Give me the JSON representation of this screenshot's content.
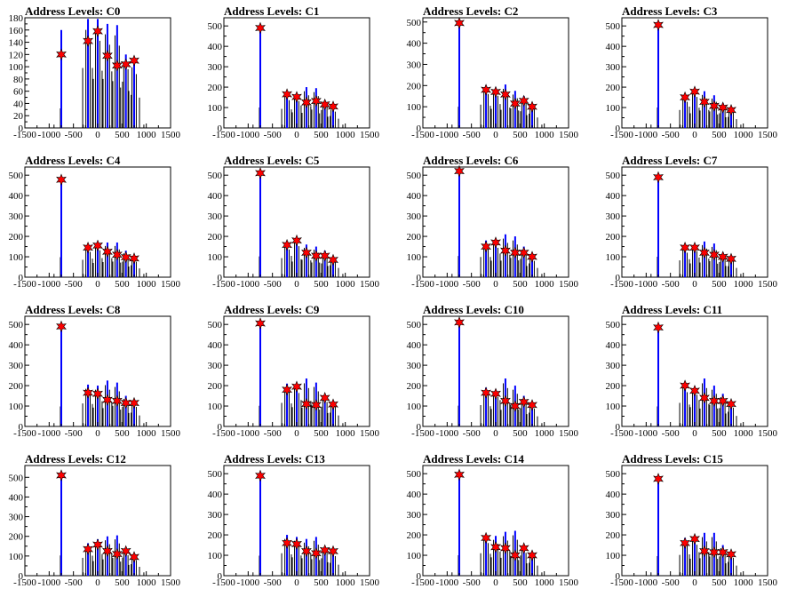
{
  "chart_data": [
    {
      "type": "bar",
      "title": "Address Levels: C0",
      "xlim": [
        -1500,
        1500
      ],
      "ylim": [
        0,
        180
      ],
      "xticks": [
        -1500,
        -1000,
        -500,
        0,
        500,
        1000,
        1500
      ],
      "yticks": [
        0,
        20,
        40,
        60,
        80,
        100,
        120,
        140,
        160,
        180
      ],
      "peaks": [
        {
          "x": -750,
          "y": 160,
          "star": 120
        },
        {
          "x": -200,
          "y": 178,
          "star": 142
        },
        {
          "x": 0,
          "y": 178,
          "star": 158
        },
        {
          "x": 200,
          "y": 170,
          "star": 118
        },
        {
          "x": 400,
          "y": 168,
          "star": 102
        },
        {
          "x": 580,
          "y": 120,
          "star": 104
        },
        {
          "x": 750,
          "y": 110,
          "star": 110
        }
      ]
    },
    {
      "type": "bar",
      "title": "Address Levels: C1",
      "xlim": [
        -1500,
        1500
      ],
      "ylim": [
        0,
        540
      ],
      "xticks": [
        -1500,
        -1000,
        -500,
        0,
        500,
        1000,
        1500
      ],
      "yticks": [
        0,
        100,
        200,
        300,
        400,
        500
      ],
      "peaks": [
        {
          "x": -750,
          "y": 500,
          "star": 490
        },
        {
          "x": -200,
          "y": 170,
          "star": 165
        },
        {
          "x": 0,
          "y": 165,
          "star": 152
        },
        {
          "x": 200,
          "y": 200,
          "star": 125
        },
        {
          "x": 400,
          "y": 195,
          "star": 132
        },
        {
          "x": 580,
          "y": 130,
          "star": 115
        },
        {
          "x": 750,
          "y": 100,
          "star": 105
        }
      ]
    },
    {
      "type": "bar",
      "title": "Address Levels: C2",
      "xlim": [
        -1500,
        1500
      ],
      "ylim": [
        0,
        520
      ],
      "xticks": [
        -1500,
        -1000,
        -500,
        0,
        500,
        1000,
        1500
      ],
      "yticks": [
        0,
        100,
        200,
        300,
        400,
        500
      ],
      "peaks": [
        {
          "x": -750,
          "y": 500,
          "star": 495
        },
        {
          "x": -200,
          "y": 200,
          "star": 180
        },
        {
          "x": 0,
          "y": 190,
          "star": 170
        },
        {
          "x": 200,
          "y": 205,
          "star": 158
        },
        {
          "x": 400,
          "y": 175,
          "star": 115
        },
        {
          "x": 580,
          "y": 150,
          "star": 128
        },
        {
          "x": 750,
          "y": 110,
          "star": 100
        }
      ]
    },
    {
      "type": "bar",
      "title": "Address Levels: C3",
      "xlim": [
        -1500,
        1500
      ],
      "ylim": [
        0,
        540
      ],
      "xticks": [
        -1500,
        -1000,
        -500,
        0,
        500,
        1000,
        1500
      ],
      "yticks": [
        0,
        100,
        200,
        300,
        400,
        500
      ],
      "peaks": [
        {
          "x": -750,
          "y": 500,
          "star": 505
        },
        {
          "x": -200,
          "y": 160,
          "star": 150
        },
        {
          "x": 0,
          "y": 190,
          "star": 178
        },
        {
          "x": 200,
          "y": 180,
          "star": 128
        },
        {
          "x": 400,
          "y": 160,
          "star": 108
        },
        {
          "x": 580,
          "y": 120,
          "star": 100
        },
        {
          "x": 750,
          "y": 95,
          "star": 88
        }
      ]
    },
    {
      "type": "bar",
      "title": "Address Levels: C4",
      "xlim": [
        -1500,
        1500
      ],
      "ylim": [
        0,
        540
      ],
      "xticks": [
        -1500,
        -1000,
        -500,
        0,
        500,
        1000,
        1500
      ],
      "yticks": [
        0,
        100,
        200,
        300,
        400,
        500
      ],
      "peaks": [
        {
          "x": -750,
          "y": 490,
          "star": 478
        },
        {
          "x": -200,
          "y": 155,
          "star": 145
        },
        {
          "x": 0,
          "y": 165,
          "star": 155
        },
        {
          "x": 200,
          "y": 170,
          "star": 125
        },
        {
          "x": 400,
          "y": 170,
          "star": 110
        },
        {
          "x": 580,
          "y": 130,
          "star": 98
        },
        {
          "x": 750,
          "y": 95,
          "star": 92
        }
      ]
    },
    {
      "type": "bar",
      "title": "Address Levels: C5",
      "xlim": [
        -1500,
        1500
      ],
      "ylim": [
        0,
        540
      ],
      "xticks": [
        -1500,
        -1000,
        -500,
        0,
        500,
        1000,
        1500
      ],
      "yticks": [
        0,
        100,
        200,
        300,
        400,
        500
      ],
      "peaks": [
        {
          "x": -750,
          "y": 510,
          "star": 510
        },
        {
          "x": -200,
          "y": 170,
          "star": 158
        },
        {
          "x": 0,
          "y": 190,
          "star": 180
        },
        {
          "x": 200,
          "y": 160,
          "star": 120
        },
        {
          "x": 400,
          "y": 150,
          "star": 105
        },
        {
          "x": 580,
          "y": 130,
          "star": 105
        },
        {
          "x": 750,
          "y": 100,
          "star": 85
        }
      ]
    },
    {
      "type": "bar",
      "title": "Address Levels: C6",
      "xlim": [
        -1500,
        1500
      ],
      "ylim": [
        0,
        540
      ],
      "xticks": [
        -1500,
        -1000,
        -500,
        0,
        500,
        1000,
        1500
      ],
      "yticks": [
        0,
        100,
        200,
        300,
        400,
        500
      ],
      "peaks": [
        {
          "x": -750,
          "y": 520,
          "star": 520
        },
        {
          "x": -200,
          "y": 180,
          "star": 150
        },
        {
          "x": 0,
          "y": 180,
          "star": 170
        },
        {
          "x": 200,
          "y": 210,
          "star": 130
        },
        {
          "x": 400,
          "y": 200,
          "star": 120
        },
        {
          "x": 580,
          "y": 150,
          "star": 120
        },
        {
          "x": 750,
          "y": 100,
          "star": 100
        }
      ]
    },
    {
      "type": "bar",
      "title": "Address Levels: C7",
      "xlim": [
        -1500,
        1500
      ],
      "ylim": [
        0,
        540
      ],
      "xticks": [
        -1500,
        -1000,
        -500,
        0,
        500,
        1000,
        1500
      ],
      "yticks": [
        0,
        100,
        200,
        300,
        400,
        500
      ],
      "peaks": [
        {
          "x": -750,
          "y": 500,
          "star": 490
        },
        {
          "x": -200,
          "y": 150,
          "star": 145
        },
        {
          "x": 0,
          "y": 160,
          "star": 145
        },
        {
          "x": 200,
          "y": 175,
          "star": 120
        },
        {
          "x": 400,
          "y": 165,
          "star": 110
        },
        {
          "x": 580,
          "y": 120,
          "star": 100
        },
        {
          "x": 750,
          "y": 100,
          "star": 90
        }
      ]
    },
    {
      "type": "bar",
      "title": "Address Levels: C8",
      "xlim": [
        -1500,
        1500
      ],
      "ylim": [
        0,
        540
      ],
      "xticks": [
        -1500,
        -1000,
        -500,
        0,
        500,
        1000,
        1500
      ],
      "yticks": [
        0,
        100,
        200,
        300,
        400,
        500
      ],
      "peaks": [
        {
          "x": -750,
          "y": 490,
          "star": 490
        },
        {
          "x": -200,
          "y": 205,
          "star": 165
        },
        {
          "x": 0,
          "y": 200,
          "star": 160
        },
        {
          "x": 200,
          "y": 225,
          "star": 130
        },
        {
          "x": 400,
          "y": 215,
          "star": 125
        },
        {
          "x": 580,
          "y": 150,
          "star": 115
        },
        {
          "x": 750,
          "y": 120,
          "star": 115
        }
      ]
    },
    {
      "type": "bar",
      "title": "Address Levels: C9",
      "xlim": [
        -1500,
        1500
      ],
      "ylim": [
        0,
        540
      ],
      "xticks": [
        -1500,
        -1000,
        -500,
        0,
        500,
        1000,
        1500
      ],
      "yticks": [
        0,
        100,
        200,
        300,
        400,
        500
      ],
      "peaks": [
        {
          "x": -750,
          "y": 505,
          "star": 505
        },
        {
          "x": -200,
          "y": 210,
          "star": 180
        },
        {
          "x": 0,
          "y": 205,
          "star": 195
        },
        {
          "x": 200,
          "y": 235,
          "star": 110
        },
        {
          "x": 400,
          "y": 215,
          "star": 105
        },
        {
          "x": 580,
          "y": 150,
          "star": 140
        },
        {
          "x": 750,
          "y": 120,
          "star": 108
        }
      ]
    },
    {
      "type": "bar",
      "title": "Address Levels: C10",
      "xlim": [
        -1500,
        1500
      ],
      "ylim": [
        0,
        540
      ],
      "xticks": [
        -1500,
        -1000,
        -500,
        0,
        500,
        1000,
        1500
      ],
      "yticks": [
        0,
        100,
        200,
        300,
        400,
        500
      ],
      "peaks": [
        {
          "x": -750,
          "y": 510,
          "star": 510
        },
        {
          "x": -200,
          "y": 190,
          "star": 165
        },
        {
          "x": 0,
          "y": 180,
          "star": 160
        },
        {
          "x": 200,
          "y": 235,
          "star": 125
        },
        {
          "x": 400,
          "y": 200,
          "star": 100
        },
        {
          "x": 580,
          "y": 150,
          "star": 120
        },
        {
          "x": 750,
          "y": 110,
          "star": 105
        }
      ]
    },
    {
      "type": "bar",
      "title": "Address Levels: C11",
      "xlim": [
        -1500,
        1500
      ],
      "ylim": [
        0,
        540
      ],
      "xticks": [
        -1500,
        -1000,
        -500,
        0,
        500,
        1000,
        1500
      ],
      "yticks": [
        0,
        100,
        200,
        300,
        400,
        500
      ],
      "peaks": [
        {
          "x": -750,
          "y": 490,
          "star": 485
        },
        {
          "x": -200,
          "y": 210,
          "star": 200
        },
        {
          "x": 0,
          "y": 195,
          "star": 175
        },
        {
          "x": 200,
          "y": 235,
          "star": 140
        },
        {
          "x": 400,
          "y": 200,
          "star": 125
        },
        {
          "x": 580,
          "y": 160,
          "star": 125
        },
        {
          "x": 750,
          "y": 115,
          "star": 110
        }
      ]
    },
    {
      "type": "bar",
      "title": "Address Levels: C12",
      "xlim": [
        -1500,
        1500
      ],
      "ylim": [
        0,
        560
      ],
      "xticks": [
        -1500,
        -1000,
        -500,
        0,
        500,
        1000,
        1500
      ],
      "yticks": [
        0,
        100,
        200,
        300,
        400,
        500
      ],
      "peaks": [
        {
          "x": -750,
          "y": 515,
          "star": 510
        },
        {
          "x": -200,
          "y": 165,
          "star": 135
        },
        {
          "x": 0,
          "y": 185,
          "star": 158
        },
        {
          "x": 200,
          "y": 200,
          "star": 125
        },
        {
          "x": 400,
          "y": 205,
          "star": 110
        },
        {
          "x": 580,
          "y": 130,
          "star": 125
        },
        {
          "x": 750,
          "y": 100,
          "star": 95
        }
      ]
    },
    {
      "type": "bar",
      "title": "Address Levels: C13",
      "xlim": [
        -1500,
        1500
      ],
      "ylim": [
        0,
        540
      ],
      "xticks": [
        -1500,
        -1000,
        -500,
        0,
        500,
        1000,
        1500
      ],
      "yticks": [
        0,
        100,
        200,
        300,
        400,
        500
      ],
      "peaks": [
        {
          "x": -750,
          "y": 490,
          "star": 490
        },
        {
          "x": -200,
          "y": 200,
          "star": 160
        },
        {
          "x": 0,
          "y": 190,
          "star": 155
        },
        {
          "x": 200,
          "y": 180,
          "star": 120
        },
        {
          "x": 400,
          "y": 190,
          "star": 110
        },
        {
          "x": 580,
          "y": 140,
          "star": 125
        },
        {
          "x": 750,
          "y": 120,
          "star": 120
        }
      ]
    },
    {
      "type": "bar",
      "title": "Address Levels: C14",
      "xlim": [
        -1500,
        1500
      ],
      "ylim": [
        0,
        540
      ],
      "xticks": [
        -1500,
        -1000,
        -500,
        0,
        500,
        1000,
        1500
      ],
      "yticks": [
        0,
        100,
        200,
        300,
        400,
        500
      ],
      "peaks": [
        {
          "x": -750,
          "y": 500,
          "star": 495
        },
        {
          "x": -200,
          "y": 200,
          "star": 185
        },
        {
          "x": 0,
          "y": 195,
          "star": 140
        },
        {
          "x": 200,
          "y": 215,
          "star": 135
        },
        {
          "x": 400,
          "y": 220,
          "star": 100
        },
        {
          "x": 580,
          "y": 140,
          "star": 135
        },
        {
          "x": 750,
          "y": 110,
          "star": 100
        }
      ]
    },
    {
      "type": "bar",
      "title": "Address Levels: C15",
      "xlim": [
        -1500,
        1500
      ],
      "ylim": [
        0,
        540
      ],
      "xticks": [
        -1500,
        -1000,
        -500,
        0,
        500,
        1000,
        1500
      ],
      "yticks": [
        0,
        100,
        200,
        300,
        400,
        500
      ],
      "peaks": [
        {
          "x": -750,
          "y": 480,
          "star": 475
        },
        {
          "x": -200,
          "y": 185,
          "star": 160
        },
        {
          "x": 0,
          "y": 190,
          "star": 180
        },
        {
          "x": 200,
          "y": 210,
          "star": 120
        },
        {
          "x": 400,
          "y": 210,
          "star": 115
        },
        {
          "x": 580,
          "y": 150,
          "star": 115
        },
        {
          "x": 750,
          "y": 110,
          "star": 105
        }
      ]
    }
  ],
  "colors": {
    "histogram": "#0000ff",
    "outline": "#000000",
    "marker_fill": "#ff0000",
    "marker_edge": "#000000",
    "axis": "#000000"
  },
  "marker_icon": "star-marker-icon"
}
